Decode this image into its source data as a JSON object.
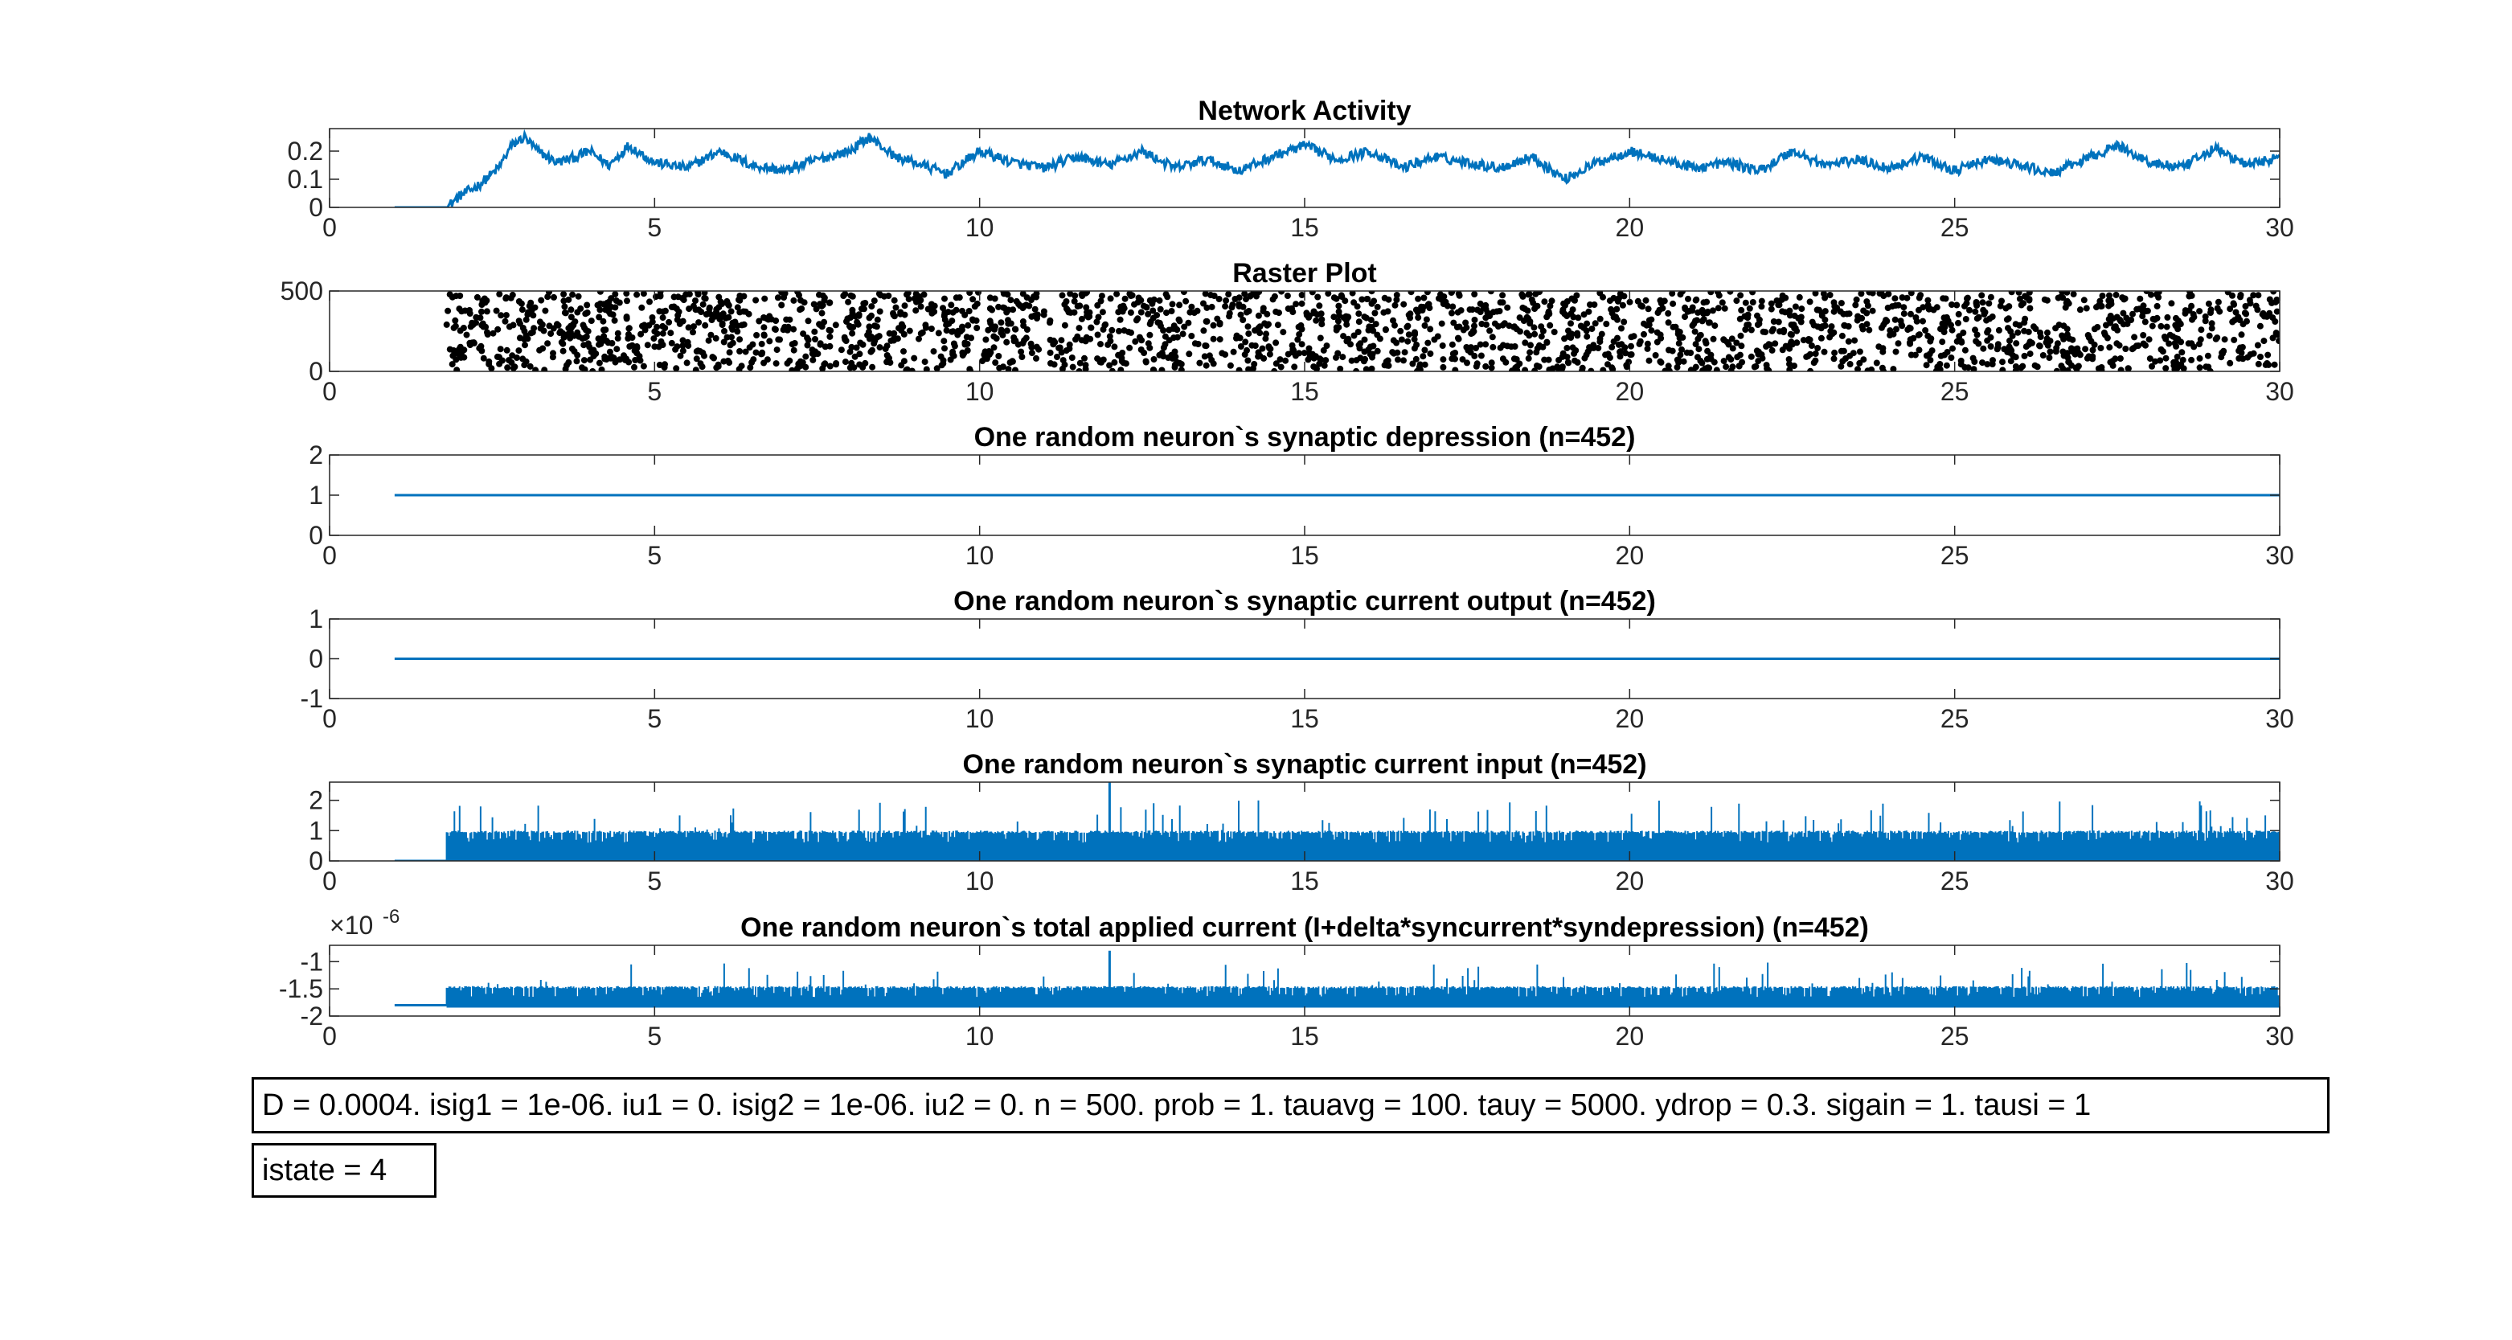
{
  "colors": {
    "line": "#0072BD",
    "marker": "#000000",
    "axis": "#262626",
    "grid_box": "#262626"
  },
  "annotations": {
    "params": "D = 0.0004. isig1 = 1e-06. iu1 = 0. isig2 = 1e-06. iu2 = 0. n = 500. prob = 1. tauavg = 100. tauy = 5000. ydrop = 0.3. sigain = 1. tausi = 1",
    "state": "istate = 4"
  },
  "chart_data": [
    {
      "type": "line",
      "title": "Network Activity",
      "xlim": [
        0,
        30
      ],
      "ylim": [
        0,
        0.28
      ],
      "xticks": [
        0,
        5,
        10,
        15,
        20,
        25,
        30
      ],
      "yticks": [
        0,
        0.1,
        0.2
      ],
      "ytick_labels": [
        "0",
        "0.1",
        "0.2"
      ],
      "series": [
        {
          "x": [
            1,
            1.8,
            2,
            2.3,
            2.6,
            2.8,
            3,
            3.2,
            3.5,
            3.8,
            4,
            4.3,
            4.6,
            5,
            5.5,
            6,
            6.5,
            7,
            7.5,
            8,
            8.3,
            8.7,
            9,
            9.5,
            10,
            10.5,
            11,
            11.5,
            12,
            12.5,
            13,
            13.5,
            14,
            14.5,
            15,
            15.5,
            16,
            16.5,
            17,
            17.5,
            18,
            18.5,
            19,
            19.5,
            20,
            20.5,
            21,
            21.5,
            22,
            22.5,
            23,
            23.5,
            24,
            24.5,
            25,
            25.5,
            26,
            26.5,
            27,
            27.5,
            28,
            28.5,
            29,
            29.5,
            30
          ],
          "y": [
            0,
            0,
            0.04,
            0.08,
            0.14,
            0.22,
            0.25,
            0.2,
            0.16,
            0.18,
            0.2,
            0.15,
            0.22,
            0.16,
            0.14,
            0.2,
            0.15,
            0.13,
            0.17,
            0.2,
            0.25,
            0.18,
            0.16,
            0.12,
            0.2,
            0.16,
            0.14,
            0.18,
            0.15,
            0.2,
            0.14,
            0.17,
            0.13,
            0.18,
            0.22,
            0.17,
            0.2,
            0.14,
            0.18,
            0.16,
            0.14,
            0.18,
            0.1,
            0.16,
            0.2,
            0.17,
            0.14,
            0.16,
            0.13,
            0.2,
            0.15,
            0.17,
            0.14,
            0.18,
            0.13,
            0.17,
            0.15,
            0.12,
            0.17,
            0.22,
            0.16,
            0.14,
            0.21,
            0.15,
            0.18
          ]
        }
      ],
      "noise": 0.035
    },
    {
      "type": "scatter",
      "title": "Raster Plot",
      "xlim": [
        0,
        30
      ],
      "ylim": [
        0,
        500
      ],
      "xticks": [
        0,
        5,
        10,
        15,
        20,
        25,
        30
      ],
      "yticks": [
        0,
        500
      ],
      "ytick_labels": [
        "0",
        "500"
      ],
      "x_range": [
        1.8,
        30
      ],
      "y_range": [
        0,
        500
      ],
      "point_count": 2400
    },
    {
      "type": "line",
      "title": "One random neuron`s synaptic depression (n=452)",
      "xlim": [
        0,
        30
      ],
      "ylim": [
        0,
        2
      ],
      "xticks": [
        0,
        5,
        10,
        15,
        20,
        25,
        30
      ],
      "yticks": [
        0,
        1,
        2
      ],
      "ytick_labels": [
        "0",
        "1",
        "2"
      ],
      "series": [
        {
          "x": [
            1,
            30
          ],
          "y": [
            1,
            1
          ]
        }
      ]
    },
    {
      "type": "line",
      "title": "One random neuron`s synaptic current output (n=452)",
      "xlim": [
        0,
        30
      ],
      "ylim": [
        -1,
        1
      ],
      "xticks": [
        0,
        5,
        10,
        15,
        20,
        25,
        30
      ],
      "yticks": [
        -1,
        0,
        1
      ],
      "ytick_labels": [
        "-1",
        "0",
        "1"
      ],
      "series": [
        {
          "x": [
            1,
            30
          ],
          "y": [
            0,
            0
          ]
        }
      ]
    },
    {
      "type": "line",
      "title": "One random neuron`s synaptic current input (n=452)",
      "xlim": [
        0,
        30
      ],
      "ylim": [
        0,
        2.6
      ],
      "xticks": [
        0,
        5,
        10,
        15,
        20,
        25,
        30
      ],
      "yticks": [
        0,
        1,
        2
      ],
      "ytick_labels": [
        "0",
        "1",
        "2"
      ],
      "series": [
        {
          "x": [
            1,
            1.8
          ],
          "y": [
            0,
            0
          ]
        }
      ],
      "spikes": {
        "x_range": [
          1.8,
          30
        ],
        "base": 0,
        "low": 0.6,
        "typical": 1.0,
        "high": 2.0,
        "peak_x": 12,
        "peak_y": 2.6
      }
    },
    {
      "type": "line",
      "title": "One random neuron`s total applied current (I+delta*syncurrent*syndepression) (n=452)",
      "exponent_label": "×10",
      "exponent_sup": "-6",
      "xlim": [
        0,
        30
      ],
      "ylim": [
        -2,
        -0.7
      ],
      "xticks": [
        0,
        5,
        10,
        15,
        20,
        25,
        30
      ],
      "yticks": [
        -2,
        -1.5,
        -1
      ],
      "ytick_labels": [
        "-2",
        "-1.5",
        "-1"
      ],
      "series": [
        {
          "x": [
            1,
            1.8
          ],
          "y": [
            -1.8,
            -1.8
          ]
        }
      ],
      "spikes": {
        "x_range": [
          1.8,
          30
        ],
        "base": -1.8,
        "low": -1.65,
        "typical": -1.45,
        "high": -1.0,
        "peak_x": 12,
        "peak_y": -0.8
      }
    }
  ]
}
